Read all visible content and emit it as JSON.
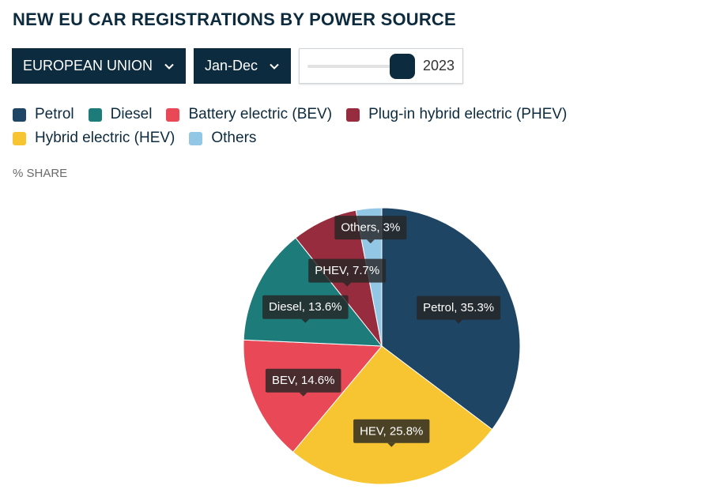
{
  "title": "NEW EU CAR REGISTRATIONS BY POWER SOURCE",
  "controls": {
    "region": "EUROPEAN UNION",
    "period": "Jan-Dec",
    "year": "2023",
    "year_slider_position": 0.92
  },
  "unit_label": "% SHARE",
  "legend": [
    {
      "label": "Petrol",
      "color": "#1f4565"
    },
    {
      "label": "Diesel",
      "color": "#1d7b7a"
    },
    {
      "label": "Battery electric (BEV)",
      "color": "#e94856"
    },
    {
      "label": "Plug-in hybrid electric (PHEV)",
      "color": "#962c3d"
    },
    {
      "label": "Hybrid electric (HEV)",
      "color": "#f7c531"
    },
    {
      "label": "Others",
      "color": "#92c8e6"
    }
  ],
  "chart_data": {
    "type": "pie",
    "title": "NEW EU CAR REGISTRATIONS BY POWER SOURCE",
    "unit": "% SHARE",
    "start_angle_deg": 0,
    "direction": "clockwise",
    "slices": [
      {
        "name": "Petrol",
        "short": "Petrol",
        "value": 35.3,
        "color": "#1f4565",
        "label": "Petrol, 35.3%"
      },
      {
        "name": "Hybrid electric (HEV)",
        "short": "HEV",
        "value": 25.8,
        "color": "#f7c531",
        "label": "HEV, 25.8%"
      },
      {
        "name": "Battery electric (BEV)",
        "short": "BEV",
        "value": 14.6,
        "color": "#e94856",
        "label": "BEV, 14.6%"
      },
      {
        "name": "Diesel",
        "short": "Diesel",
        "value": 13.6,
        "color": "#1d7b7a",
        "label": "Diesel, 13.6%"
      },
      {
        "name": "Plug-in hybrid electric (PHEV)",
        "short": "PHEV",
        "value": 7.7,
        "color": "#962c3d",
        "label": "PHEV, 7.7%"
      },
      {
        "name": "Others",
        "short": "Others",
        "value": 3,
        "color": "#92c8e6",
        "label": "Others, 3%"
      }
    ]
  }
}
